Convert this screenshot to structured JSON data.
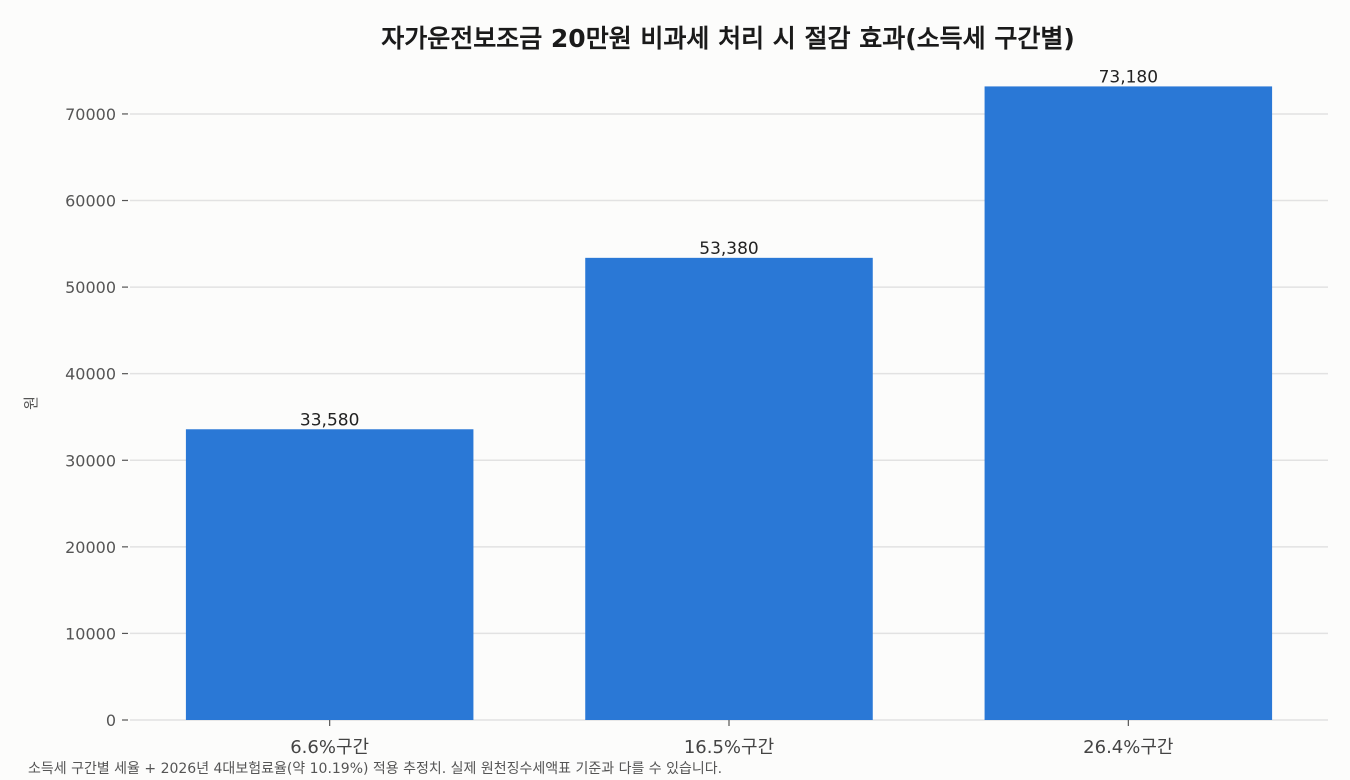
{
  "chart_data": {
    "type": "bar",
    "title": "자가운전보조금 20만원 비과세 처리 시 절감 효과(소득세 구간별)",
    "ylabel": "원",
    "xlabel": "",
    "categories": [
      "6.6%구간",
      "16.5%구간",
      "26.4%구간"
    ],
    "values": [
      33580,
      53380,
      73180
    ],
    "data_labels": [
      "33,580",
      "53,380",
      "73,180"
    ],
    "yticks": [
      0,
      10000,
      20000,
      30000,
      40000,
      50000,
      60000,
      70000
    ],
    "ytick_labels": [
      "0",
      "10000",
      "20000",
      "30000",
      "40000",
      "50000",
      "60000",
      "70000"
    ],
    "ylim": [
      0,
      76000
    ],
    "grid": true,
    "legend": "none",
    "bar_color": "#2a78d6",
    "footnote": "소득세 구간별 세율 + 2026년 4대보험료율(약 10.19%) 적용 추정치. 실제 원천징수세액표 기준과 다를 수 있습니다."
  }
}
